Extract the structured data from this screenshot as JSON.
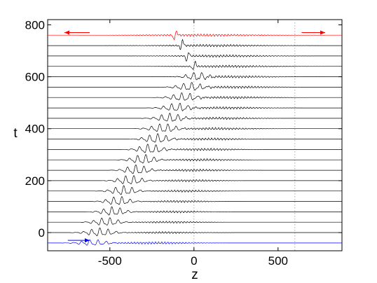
{
  "chart_data": {
    "type": "line",
    "title": "",
    "xlabel": "z",
    "ylabel": "t",
    "xlim": [
      -870,
      880
    ],
    "ylim": [
      -70,
      820
    ],
    "x_ticks": [
      -500,
      0,
      500
    ],
    "y_ticks": [
      0,
      200,
      400,
      600,
      800
    ],
    "x_tick_labels": [
      "-500",
      "0",
      "500"
    ],
    "y_tick_labels": [
      "0",
      "200",
      "400",
      "600",
      "800"
    ],
    "grid": false,
    "legend": "none",
    "reference_lines_z": [
      0,
      600
    ],
    "baselines_t": [
      -40,
      0,
      40,
      80,
      120,
      160,
      200,
      240,
      280,
      320,
      360,
      400,
      440,
      480,
      520,
      560,
      600,
      640,
      680,
      720,
      760
    ],
    "series": [
      {
        "t": -40,
        "color": "#0000ff",
        "packets": [
          {
            "center": -600,
            "halfwidth": 140,
            "amp": 5
          },
          {
            "center": -230,
            "halfwidth": 340,
            "amp": 1.8
          }
        ]
      },
      {
        "t": 0,
        "color": "#000000",
        "packets": [
          {
            "center": -560,
            "halfwidth": 130,
            "amp": 7
          },
          {
            "center": -170,
            "halfwidth": 290,
            "amp": 1.5
          }
        ]
      },
      {
        "t": 40,
        "color": "#000000",
        "packets": [
          {
            "center": -520,
            "halfwidth": 125,
            "amp": 7
          },
          {
            "center": -140,
            "halfwidth": 280,
            "amp": 1.5
          }
        ]
      },
      {
        "t": 80,
        "color": "#000000",
        "packets": [
          {
            "center": -480,
            "halfwidth": 120,
            "amp": 7.5
          },
          {
            "center": -110,
            "halfwidth": 270,
            "amp": 1.6
          }
        ]
      },
      {
        "t": 120,
        "color": "#000000",
        "packets": [
          {
            "center": -450,
            "halfwidth": 120,
            "amp": 7.5
          },
          {
            "center": -80,
            "halfwidth": 270,
            "amp": 1.6
          }
        ]
      },
      {
        "t": 160,
        "color": "#000000",
        "packets": [
          {
            "center": -420,
            "halfwidth": 120,
            "amp": 8
          },
          {
            "center": -50,
            "halfwidth": 270,
            "amp": 1.7
          }
        ]
      },
      {
        "t": 200,
        "color": "#000000",
        "packets": [
          {
            "center": -380,
            "halfwidth": 120,
            "amp": 8
          },
          {
            "center": -20,
            "halfwidth": 270,
            "amp": 1.7
          }
        ]
      },
      {
        "t": 240,
        "color": "#000000",
        "packets": [
          {
            "center": -340,
            "halfwidth": 120,
            "amp": 8
          },
          {
            "center": 10,
            "halfwidth": 280,
            "amp": 1.8
          }
        ]
      },
      {
        "t": 280,
        "color": "#000000",
        "packets": [
          {
            "center": -300,
            "halfwidth": 120,
            "amp": 8
          },
          {
            "center": 40,
            "halfwidth": 280,
            "amp": 1.8
          }
        ]
      },
      {
        "t": 320,
        "color": "#000000",
        "packets": [
          {
            "center": -260,
            "halfwidth": 125,
            "amp": 8
          },
          {
            "center": 70,
            "halfwidth": 290,
            "amp": 1.8
          }
        ]
      },
      {
        "t": 360,
        "color": "#000000",
        "packets": [
          {
            "center": -220,
            "halfwidth": 125,
            "amp": 8
          },
          {
            "center": 100,
            "halfwidth": 300,
            "amp": 1.8
          }
        ]
      },
      {
        "t": 400,
        "color": "#000000",
        "packets": [
          {
            "center": -180,
            "halfwidth": 130,
            "amp": 7.5
          },
          {
            "center": 130,
            "halfwidth": 310,
            "amp": 1.8
          }
        ]
      },
      {
        "t": 440,
        "color": "#000000",
        "packets": [
          {
            "center": -140,
            "halfwidth": 130,
            "amp": 7.5
          },
          {
            "center": 160,
            "halfwidth": 320,
            "amp": 1.8
          }
        ]
      },
      {
        "t": 480,
        "color": "#000000",
        "packets": [
          {
            "center": -100,
            "halfwidth": 130,
            "amp": 7
          },
          {
            "center": 190,
            "halfwidth": 330,
            "amp": 1.8
          }
        ]
      },
      {
        "t": 520,
        "color": "#000000",
        "packets": [
          {
            "center": -60,
            "halfwidth": 130,
            "amp": 7
          },
          {
            "center": 220,
            "halfwidth": 340,
            "amp": 1.8
          }
        ]
      },
      {
        "t": 560,
        "color": "#000000",
        "packets": [
          {
            "center": -20,
            "halfwidth": 130,
            "amp": 7
          },
          {
            "center": 250,
            "halfwidth": 350,
            "amp": 1.8
          }
        ]
      },
      {
        "t": 600,
        "color": "#000000",
        "packets": [
          {
            "center": 20,
            "halfwidth": 110,
            "amp": 7
          },
          {
            "center": 230,
            "halfwidth": 380,
            "amp": 1.8
          }
        ]
      },
      {
        "t": 640,
        "color": "#000000",
        "packets": [
          {
            "center": 0,
            "halfwidth": 20,
            "amp": 10
          },
          {
            "center": 200,
            "halfwidth": 420,
            "amp": 1.8
          }
        ]
      },
      {
        "t": 680,
        "color": "#000000",
        "packets": [
          {
            "center": -40,
            "halfwidth": 20,
            "amp": 10
          },
          {
            "center": 150,
            "halfwidth": 450,
            "amp": 1.8
          }
        ]
      },
      {
        "t": 720,
        "color": "#000000",
        "packets": [
          {
            "center": -70,
            "halfwidth": 20,
            "amp": 11
          },
          {
            "center": 100,
            "halfwidth": 480,
            "amp": 1.8
          }
        ]
      },
      {
        "t": 760,
        "color": "#ff0000",
        "packets": [
          {
            "center": -110,
            "halfwidth": 20,
            "amp": 12
          },
          {
            "center": 50,
            "halfwidth": 520,
            "amp": 1.8
          }
        ]
      }
    ],
    "arrows": [
      {
        "color": "#ff0000",
        "direction": "left",
        "z_from": -620,
        "z_to": -770,
        "t": 770
      },
      {
        "color": "#ff0000",
        "direction": "right",
        "z_from": 640,
        "z_to": 780,
        "t": 770
      },
      {
        "color": "#0000ff",
        "direction": "right",
        "z_from": -750,
        "z_to": -620,
        "t": -30
      }
    ]
  }
}
